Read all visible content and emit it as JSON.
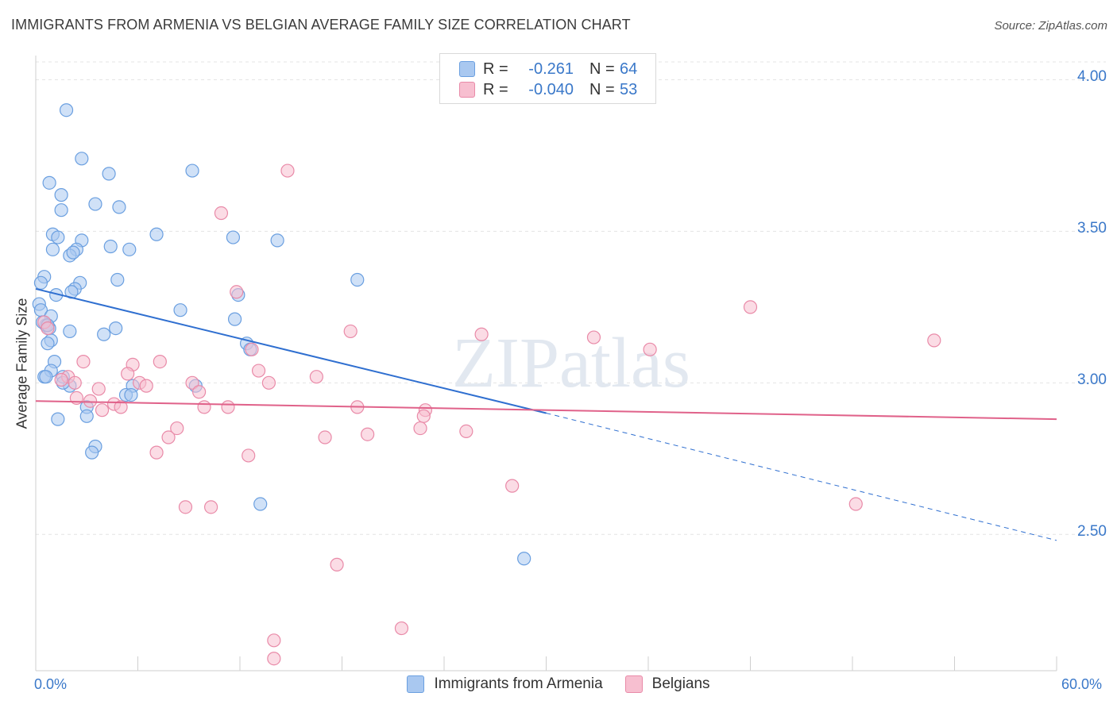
{
  "title": "IMMIGRANTS FROM ARMENIA VS BELGIAN AVERAGE FAMILY SIZE CORRELATION CHART",
  "source": "Source: ZipAtlas.com",
  "watermark": "ZIPatlas",
  "legend": {
    "rows": [
      {
        "r_label": "R =",
        "r_value": "-0.261",
        "n_label": "N =",
        "n_value": "64",
        "color": "#a9c8f0",
        "border": "#6a9fe0"
      },
      {
        "r_label": "R =",
        "r_value": "-0.040",
        "n_label": "N =",
        "n_value": "53",
        "color": "#f7bfd0",
        "border": "#e98aa8"
      }
    ]
  },
  "bottom_legend": [
    "Immigrants from Armenia",
    "Belgians"
  ],
  "chart_data": {
    "type": "scatter",
    "title": "IMMIGRANTS FROM ARMENIA VS BELGIAN AVERAGE FAMILY SIZE CORRELATION CHART",
    "xlabel": "",
    "ylabel": "Average Family Size",
    "xlim": [
      0,
      60
    ],
    "ylim": [
      2.05,
      4.08
    ],
    "x_tick_labels": [
      "0.0%",
      "60.0%"
    ],
    "y_ticks": [
      2.5,
      3.0,
      3.5,
      4.0
    ],
    "y_tick_labels": [
      "2.50",
      "3.00",
      "3.50",
      "4.00"
    ],
    "grid": true,
    "series": [
      {
        "name": "Immigrants from Armenia",
        "color": "#6a9fe0",
        "fill": "#a9c8f0",
        "trend": {
          "x0": 0,
          "y0": 3.31,
          "x1": 30,
          "y1": 2.9,
          "dashed_to_x": 60,
          "dashed_to_y": 2.48
        },
        "points": [
          [
            1.8,
            3.9
          ],
          [
            2.7,
            3.74
          ],
          [
            4.3,
            3.69
          ],
          [
            9.2,
            3.7
          ],
          [
            0.8,
            3.66
          ],
          [
            1.5,
            3.62
          ],
          [
            3.5,
            3.59
          ],
          [
            4.9,
            3.58
          ],
          [
            1.5,
            3.57
          ],
          [
            1.0,
            3.49
          ],
          [
            1.3,
            3.48
          ],
          [
            2.7,
            3.47
          ],
          [
            7.1,
            3.49
          ],
          [
            11.6,
            3.48
          ],
          [
            14.2,
            3.47
          ],
          [
            1.0,
            3.44
          ],
          [
            2.4,
            3.44
          ],
          [
            4.4,
            3.45
          ],
          [
            5.5,
            3.44
          ],
          [
            2.0,
            3.42
          ],
          [
            2.2,
            3.43
          ],
          [
            0.5,
            3.35
          ],
          [
            0.3,
            3.33
          ],
          [
            4.8,
            3.34
          ],
          [
            2.6,
            3.33
          ],
          [
            2.3,
            3.31
          ],
          [
            1.2,
            3.29
          ],
          [
            11.9,
            3.29
          ],
          [
            18.9,
            3.34
          ],
          [
            2.1,
            3.3
          ],
          [
            0.2,
            3.26
          ],
          [
            0.3,
            3.24
          ],
          [
            0.9,
            3.22
          ],
          [
            8.5,
            3.24
          ],
          [
            11.7,
            3.21
          ],
          [
            0.6,
            3.19
          ],
          [
            0.4,
            3.2
          ],
          [
            0.8,
            3.18
          ],
          [
            2.0,
            3.17
          ],
          [
            4.7,
            3.18
          ],
          [
            4.0,
            3.16
          ],
          [
            0.9,
            3.14
          ],
          [
            0.7,
            3.13
          ],
          [
            12.4,
            3.13
          ],
          [
            12.6,
            3.11
          ],
          [
            1.1,
            3.07
          ],
          [
            0.9,
            3.04
          ],
          [
            1.6,
            3.02
          ],
          [
            0.5,
            3.02
          ],
          [
            0.6,
            3.02
          ],
          [
            2.0,
            2.99
          ],
          [
            1.6,
            3.0
          ],
          [
            9.4,
            2.99
          ],
          [
            5.7,
            2.99
          ],
          [
            5.3,
            2.96
          ],
          [
            5.6,
            2.96
          ],
          [
            3.0,
            2.92
          ],
          [
            1.3,
            2.88
          ],
          [
            3.0,
            2.89
          ],
          [
            3.5,
            2.79
          ],
          [
            3.3,
            2.77
          ],
          [
            13.2,
            2.6
          ],
          [
            28.7,
            2.42
          ],
          [
            0.7,
            3.19
          ]
        ]
      },
      {
        "name": "Belgians",
        "color": "#e98aa8",
        "fill": "#f7bfd0",
        "trend": {
          "x0": 0,
          "y0": 2.94,
          "x1": 60,
          "y1": 2.88
        },
        "points": [
          [
            14.8,
            3.7
          ],
          [
            10.9,
            3.56
          ],
          [
            11.8,
            3.3
          ],
          [
            42.0,
            3.25
          ],
          [
            0.5,
            3.2
          ],
          [
            0.7,
            3.18
          ],
          [
            18.5,
            3.17
          ],
          [
            26.2,
            3.16
          ],
          [
            32.8,
            3.15
          ],
          [
            52.8,
            3.14
          ],
          [
            36.1,
            3.11
          ],
          [
            12.7,
            3.11
          ],
          [
            2.8,
            3.07
          ],
          [
            7.3,
            3.07
          ],
          [
            5.7,
            3.06
          ],
          [
            13.1,
            3.04
          ],
          [
            5.4,
            3.03
          ],
          [
            16.5,
            3.02
          ],
          [
            1.9,
            3.02
          ],
          [
            1.5,
            3.01
          ],
          [
            2.3,
            3.0
          ],
          [
            6.1,
            3.0
          ],
          [
            9.2,
            3.0
          ],
          [
            13.7,
            3.0
          ],
          [
            3.7,
            2.98
          ],
          [
            6.5,
            2.99
          ],
          [
            9.6,
            2.97
          ],
          [
            2.4,
            2.95
          ],
          [
            4.6,
            2.93
          ],
          [
            5.0,
            2.92
          ],
          [
            3.2,
            2.94
          ],
          [
            9.9,
            2.92
          ],
          [
            11.3,
            2.92
          ],
          [
            18.9,
            2.92
          ],
          [
            22.9,
            2.91
          ],
          [
            3.9,
            2.91
          ],
          [
            22.8,
            2.89
          ],
          [
            22.6,
            2.85
          ],
          [
            25.3,
            2.84
          ],
          [
            17.0,
            2.82
          ],
          [
            19.5,
            2.83
          ],
          [
            8.3,
            2.85
          ],
          [
            7.8,
            2.82
          ],
          [
            7.1,
            2.77
          ],
          [
            12.5,
            2.76
          ],
          [
            28.0,
            2.66
          ],
          [
            48.2,
            2.6
          ],
          [
            8.8,
            2.59
          ],
          [
            10.3,
            2.59
          ],
          [
            17.7,
            2.4
          ],
          [
            21.5,
            2.19
          ],
          [
            14.0,
            2.15
          ],
          [
            14.0,
            2.09
          ]
        ]
      }
    ]
  }
}
